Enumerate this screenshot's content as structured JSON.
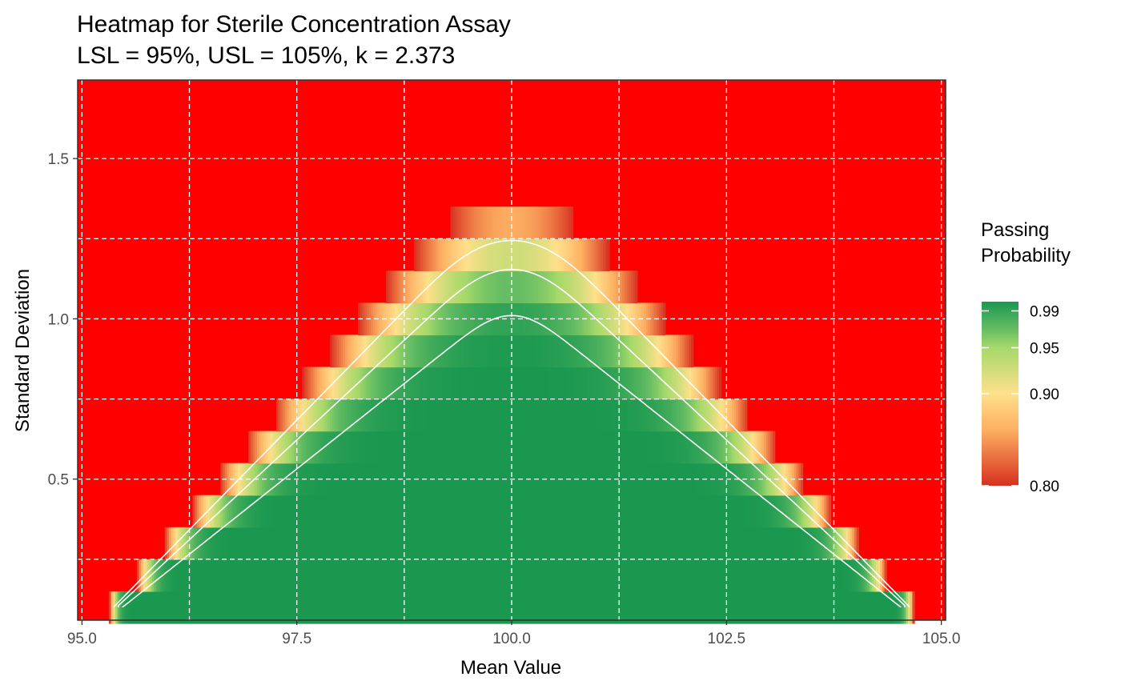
{
  "chart_data": {
    "type": "heatmap",
    "title_line1": "Heatmap for Sterile Concentration Assay",
    "title_line2": "LSL = 95%, USL = 105%, k = 2.373",
    "xlabel": "Mean Value",
    "ylabel": "Standard Deviation",
    "xlim": [
      94.95,
      105.05
    ],
    "ylim": [
      0.06,
      1.745
    ],
    "x_ticks": [
      "95.0",
      "97.5",
      "100.0",
      "102.5",
      "105.0"
    ],
    "x_tick_values": [
      95.0,
      97.5,
      100.0,
      102.5,
      105.0
    ],
    "y_ticks": [
      "0.5",
      "1.0",
      "1.5"
    ],
    "y_tick_values": [
      0.5,
      1.0,
      1.5
    ],
    "grid": true,
    "lsl": 95,
    "usl": 105,
    "k": 2.373,
    "mean_range": [
      95.3,
      104.7
    ],
    "mean_step": 0.1,
    "sd_range": [
      0.1,
      1.7
    ],
    "sd_step": 0.1,
    "contour_levels": [
      0.9,
      0.95,
      0.99
    ],
    "legend": {
      "title_line1": "Passing",
      "title_line2": "Probability",
      "position": "right",
      "labels": [
        "0.99",
        "0.95",
        "0.90",
        "0.80"
      ],
      "label_values": [
        0.99,
        0.95,
        0.9,
        0.8
      ],
      "range": [
        0.8,
        1.0
      ]
    },
    "colors": {
      "background": "#ff0000",
      "low": "#d7301f",
      "mid_orange": "#fdae61",
      "mid_yellow": "#fee08b",
      "mid_green": "#a6d96a",
      "green": "#66bd63",
      "high": "#1a9850",
      "contour": "#ffffff",
      "grid": "#ffffff"
    }
  }
}
